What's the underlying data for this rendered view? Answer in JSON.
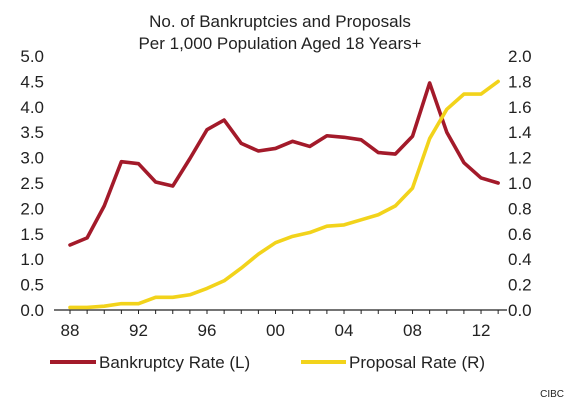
{
  "chart_data": {
    "type": "line",
    "title_lines": [
      "No. of Bankruptcies and Proposals",
      "Per 1,000 Population Aged 18 Years+"
    ],
    "xlabel": "",
    "x_range": [
      1988,
      2013.4
    ],
    "x_ticks": [
      {
        "value": 1988,
        "label": "88"
      },
      {
        "value": 1992,
        "label": "92"
      },
      {
        "value": 1996,
        "label": "96"
      },
      {
        "value": 2000,
        "label": "00"
      },
      {
        "value": 2004,
        "label": "04"
      },
      {
        "value": 2008,
        "label": "08"
      },
      {
        "value": 2012,
        "label": "12"
      }
    ],
    "y_left": {
      "label": "",
      "range": [
        0,
        5
      ],
      "ticks": [
        "0.0",
        "0.5",
        "1.0",
        "1.5",
        "2.0",
        "2.5",
        "3.0",
        "3.5",
        "4.0",
        "4.5",
        "5.0"
      ]
    },
    "y_right": {
      "label": "",
      "range": [
        0,
        2
      ],
      "ticks": [
        "0.0",
        "0.2",
        "0.4",
        "0.6",
        "0.8",
        "1.0",
        "1.2",
        "1.4",
        "1.6",
        "1.8",
        "2.0"
      ]
    },
    "grid": false,
    "legend_position": "bottom",
    "series": [
      {
        "name": "Bankruptcy Rate (L)",
        "axis": "left",
        "color": "#a31a2a",
        "points": [
          [
            1988.0,
            1.28
          ],
          [
            1989.0,
            1.42
          ],
          [
            1990.0,
            2.05
          ],
          [
            1991.0,
            2.92
          ],
          [
            1992.0,
            2.88
          ],
          [
            1993.0,
            2.52
          ],
          [
            1994.0,
            2.44
          ],
          [
            1995.0,
            2.98
          ],
          [
            1996.0,
            3.55
          ],
          [
            1997.0,
            3.74
          ],
          [
            1998.0,
            3.28
          ],
          [
            1999.0,
            3.13
          ],
          [
            2000.0,
            3.18
          ],
          [
            2001.0,
            3.32
          ],
          [
            2002.0,
            3.22
          ],
          [
            2003.0,
            3.43
          ],
          [
            2004.0,
            3.4
          ],
          [
            2005.0,
            3.35
          ],
          [
            2006.0,
            3.1
          ],
          [
            2007.0,
            3.07
          ],
          [
            2008.0,
            3.42
          ],
          [
            2009.0,
            4.47
          ],
          [
            2010.0,
            3.5
          ],
          [
            2011.0,
            2.9
          ],
          [
            2012.0,
            2.6
          ],
          [
            2013.0,
            2.5
          ]
        ]
      },
      {
        "name": "Proposal Rate (R)",
        "axis": "right",
        "color": "#f2d31b",
        "points": [
          [
            1988.0,
            0.02
          ],
          [
            1989.0,
            0.02
          ],
          [
            1990.0,
            0.03
          ],
          [
            1991.0,
            0.05
          ],
          [
            1992.0,
            0.05
          ],
          [
            1993.0,
            0.1
          ],
          [
            1994.0,
            0.1
          ],
          [
            1995.0,
            0.12
          ],
          [
            1996.0,
            0.17
          ],
          [
            1997.0,
            0.23
          ],
          [
            1998.0,
            0.33
          ],
          [
            1999.0,
            0.44
          ],
          [
            2000.0,
            0.53
          ],
          [
            2001.0,
            0.58
          ],
          [
            2002.0,
            0.61
          ],
          [
            2003.0,
            0.66
          ],
          [
            2004.0,
            0.67
          ],
          [
            2005.0,
            0.71
          ],
          [
            2006.0,
            0.75
          ],
          [
            2007.0,
            0.82
          ],
          [
            2008.0,
            0.96
          ],
          [
            2009.0,
            1.35
          ],
          [
            2010.0,
            1.58
          ],
          [
            2011.0,
            1.7
          ],
          [
            2012.0,
            1.7
          ],
          [
            2013.0,
            1.8
          ]
        ]
      }
    ],
    "source": "CIBC",
    "colors": {
      "axis": "#222222",
      "text": "#222222",
      "background": "#ffffff"
    }
  }
}
